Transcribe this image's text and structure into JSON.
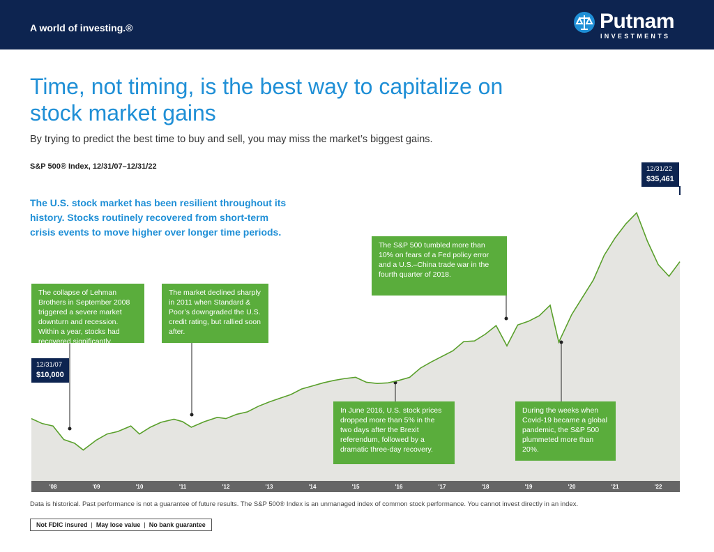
{
  "header": {
    "tagline": "A world of investing.®",
    "brand": "Putnam",
    "brand_sub": "INVESTMENTS"
  },
  "title": "Time, not timing, is the best way to capitalize on stock market gains",
  "subtitle": "By trying to predict the best time to buy and sell, you may miss the market’s biggest gains.",
  "lead": "The U.S. stock market has been resilient throughout its history. Stocks routinely recovered from short-term crisis events to move higher over longer time periods.",
  "chart_data": {
    "type": "area",
    "title": "S&P 500® Index, 12/31/07–12/31/22",
    "color": "#5aa02c",
    "fill": "#e5e5e1",
    "x": [
      2008.0,
      2008.25,
      2008.5,
      2008.75,
      2009.0,
      2009.2,
      2009.5,
      2009.75,
      2010.0,
      2010.3,
      2010.5,
      2010.75,
      2011.0,
      2011.3,
      2011.5,
      2011.7,
      2012.0,
      2012.3,
      2012.5,
      2012.75,
      2013.0,
      2013.25,
      2013.5,
      2013.75,
      2014.0,
      2014.25,
      2014.5,
      2014.75,
      2015.0,
      2015.25,
      2015.5,
      2015.75,
      2016.0,
      2016.25,
      2016.5,
      2016.75,
      2017.0,
      2017.25,
      2017.5,
      2017.75,
      2018.0,
      2018.25,
      2018.5,
      2018.75,
      2019.0,
      2019.25,
      2019.5,
      2019.75,
      2020.0,
      2020.2,
      2020.5,
      2020.75,
      2021.0,
      2021.25,
      2021.5,
      2021.75,
      2022.0,
      2022.25,
      2022.5,
      2022.75,
      2023.0
    ],
    "values": [
      10000,
      9200,
      8800,
      6600,
      6000,
      4900,
      6500,
      7500,
      7900,
      8800,
      7500,
      8600,
      9400,
      9900,
      9500,
      8600,
      9500,
      10200,
      10000,
      10700,
      11100,
      12000,
      12700,
      13300,
      13900,
      14800,
      15300,
      15800,
      16200,
      16500,
      16700,
      15900,
      15700,
      15800,
      16200,
      16700,
      18200,
      19200,
      20100,
      21000,
      22500,
      22600,
      23700,
      25100,
      21800,
      25200,
      25800,
      26700,
      28400,
      22400,
      26900,
      29700,
      32500,
      36500,
      39300,
      41600,
      43400,
      38800,
      35000,
      33100,
      35461
    ],
    "value_labels": [
      "$10,000",
      null,
      null,
      null,
      null,
      null,
      null,
      null,
      null,
      null,
      null,
      null,
      null,
      null,
      null,
      null,
      null,
      null,
      null,
      null,
      null,
      null,
      null,
      null,
      null,
      null,
      null,
      null,
      null,
      null,
      null,
      null,
      null,
      null,
      null,
      null,
      null,
      null,
      null,
      null,
      null,
      null,
      null,
      null,
      null,
      null,
      null,
      null,
      null,
      null,
      null,
      null,
      null,
      null,
      null,
      null,
      null,
      null,
      null,
      null,
      "$35,461"
    ],
    "date_labels": [
      "12/31/07",
      "12/31/22"
    ],
    "xlim": [
      2008,
      2023
    ],
    "ylim": [
      0,
      50000
    ],
    "xticks": [
      {
        "value": 2008.5,
        "label": "'08"
      },
      {
        "value": 2009.5,
        "label": "'09"
      },
      {
        "value": 2010.5,
        "label": "'10"
      },
      {
        "value": 2011.5,
        "label": "'11"
      },
      {
        "value": 2012.5,
        "label": "'12"
      },
      {
        "value": 2013.5,
        "label": "'13"
      },
      {
        "value": 2014.5,
        "label": "'14"
      },
      {
        "value": 2015.5,
        "label": "'15"
      },
      {
        "value": 2016.5,
        "label": "'16"
      },
      {
        "value": 2017.5,
        "label": "'17"
      },
      {
        "value": 2018.5,
        "label": "'18"
      },
      {
        "value": 2019.5,
        "label": "'19"
      },
      {
        "value": 2020.5,
        "label": "'20"
      },
      {
        "value": 2021.5,
        "label": "'21"
      },
      {
        "value": 2022.5,
        "label": "'22"
      }
    ],
    "annotations": [
      "The collapse of Lehman Brothers in September 2008 triggered a severe market downturn and recession. Within a year, stocks had recovered significantly.",
      "The market declined sharply in 2011 when Standard & Poor’s downgraded the U.S. credit rating, but rallied soon after.",
      "The S&P 500 tumbled more than 10% on fears of a Fed policy error and a U.S.–China trade war in the fourth quarter of 2018.",
      "In June 2016, U.S. stock prices dropped more than 5% in the two days after the Brexit referendum, followed by a dramatic three-day recovery.",
      "During the weeks when Covid-19 became a global pandemic, the S&P 500 plummeted more than 20%."
    ]
  },
  "footnote": "Data is historical. Past performance is not a guarantee of future results. The S&P 500® Index is an unmanaged index of common stock performance. You cannot invest directly in an index.",
  "badges": [
    "Not FDIC insured",
    "May lose value",
    "No bank guarantee"
  ]
}
